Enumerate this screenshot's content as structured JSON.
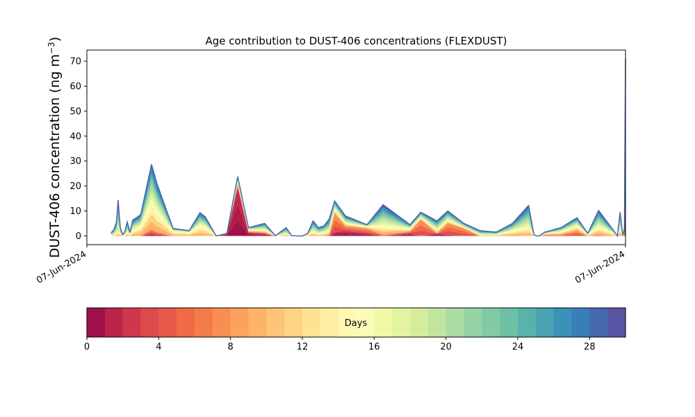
{
  "chart_data": {
    "type": "area",
    "stacked": true,
    "title": "Age contribution to DUST-406 concentrations (FLEXDUST)",
    "ylabel": "DUST-406 concentration (ng m",
    "ylabel_exp": "−3",
    "ylabel_end": ")",
    "xlabel": "",
    "ylim": [
      -3.5,
      74.5
    ],
    "yticks": [
      0,
      10,
      20,
      30,
      40,
      50,
      60,
      70
    ],
    "xticks": [
      0,
      1
    ],
    "xtick_labels": [
      "07-Jun-2024",
      "07-Jun-2024"
    ],
    "x": [
      0.045,
      0.05,
      0.055,
      0.058,
      0.062,
      0.066,
      0.07,
      0.075,
      0.08,
      0.085,
      0.09,
      0.1,
      0.12,
      0.13,
      0.16,
      0.19,
      0.21,
      0.22,
      0.24,
      0.26,
      0.28,
      0.3,
      0.33,
      0.35,
      0.37,
      0.38,
      0.39,
      0.4,
      0.41,
      0.42,
      0.43,
      0.44,
      0.45,
      0.46,
      0.48,
      0.52,
      0.55,
      0.6,
      0.62,
      0.65,
      0.67,
      0.7,
      0.73,
      0.76,
      0.79,
      0.82,
      0.83,
      0.835,
      0.84,
      0.85,
      0.88,
      0.91,
      0.93,
      0.95,
      0.975,
      0.985,
      0.99,
      0.995,
      0.998,
      1.0
    ],
    "total": [
      1.2,
      2.5,
      5.5,
      14.3,
      3.5,
      0.5,
      1.5,
      5.6,
      1.5,
      6.3,
      7.0,
      8.5,
      28.7,
      21,
      3.0,
      2.1,
      9.3,
      7.6,
      0,
      1.0,
      23.8,
      3.3,
      5.0,
      0.1,
      3.3,
      0.1,
      0,
      0,
      1.0,
      6.0,
      3.3,
      4.0,
      6.8,
      14.0,
      8.0,
      4.5,
      12.5,
      4.5,
      9.5,
      6.0,
      10.0,
      5.0,
      2.1,
      1.5,
      5.0,
      12.2,
      0.5,
      0,
      0,
      1.5,
      3.3,
      7.3,
      1.0,
      10.2,
      3.0,
      0,
      9.5,
      0.1,
      3.0,
      71.0
    ],
    "young_0_2": [
      0,
      0,
      0,
      0,
      0,
      0,
      0,
      0,
      0,
      0,
      0,
      0,
      0.8,
      0.5,
      0,
      0,
      0,
      0,
      0,
      0.8,
      19.3,
      1.3,
      0.8,
      0,
      0,
      0,
      0,
      0,
      0,
      0,
      0,
      0,
      0,
      1.5,
      2.0,
      1.0,
      0,
      1.0,
      0,
      1.0,
      0.5,
      0,
      0,
      0,
      0,
      0,
      0,
      0,
      0,
      0,
      0,
      0,
      0,
      0,
      0,
      0,
      0,
      0,
      0,
      56.0
    ],
    "mid_2_8": [
      0,
      0,
      0,
      0,
      0,
      0,
      0,
      0,
      0,
      0,
      0,
      0.2,
      2.0,
      1.2,
      0,
      0,
      0,
      0,
      0,
      0.2,
      1.5,
      0.4,
      0.6,
      0,
      0,
      0,
      0,
      0,
      0,
      0,
      0,
      0,
      0.5,
      7.5,
      2.0,
      2.0,
      0.5,
      0.8,
      6.5,
      0,
      4.5,
      3.0,
      0,
      0,
      0.2,
      0,
      0,
      0,
      0,
      0.5,
      0.5,
      2.0,
      0,
      0.5,
      0,
      0,
      0.2,
      0,
      0,
      0
    ],
    "old_8_16": [
      0.3,
      0.5,
      1.0,
      2.0,
      1.0,
      0.2,
      0.5,
      1.5,
      0.5,
      2.5,
      3.0,
      4.0,
      12.0,
      9.0,
      2.0,
      1.5,
      4.5,
      3.8,
      0,
      0,
      1.0,
      0.8,
      1.2,
      0,
      1.0,
      0,
      0,
      0,
      0.5,
      2.0,
      1.0,
      1.5,
      1.5,
      2.0,
      1.2,
      0.8,
      4.0,
      1.2,
      1.0,
      1.5,
      1.5,
      0.6,
      0.5,
      0.5,
      2.0,
      4.0,
      0.2,
      0,
      0,
      0.4,
      1.3,
      2.3,
      0.6,
      3.5,
      1.5,
      0,
      3.0,
      0,
      1.0,
      8.0
    ],
    "oldest_16_30": [
      0.9,
      2.0,
      4.5,
      12.3,
      2.5,
      0.3,
      1.0,
      4.1,
      1.0,
      3.8,
      4.0,
      4.3,
      13.9,
      10.3,
      1.0,
      0.6,
      4.8,
      3.8,
      0,
      0,
      2.0,
      0.8,
      2.4,
      0.1,
      2.3,
      0.1,
      0,
      0,
      0.5,
      4.0,
      2.3,
      2.5,
      4.8,
      3.0,
      2.8,
      0.7,
      8.0,
      1.5,
      2.0,
      3.5,
      3.5,
      1.4,
      1.6,
      1.0,
      2.8,
      8.2,
      0.3,
      0,
      0,
      0.6,
      1.5,
      3.0,
      0.4,
      6.2,
      1.5,
      0,
      6.3,
      0.1,
      2.0,
      7.0
    ],
    "colorbar": {
      "label": "Days",
      "min": 0,
      "max": 30,
      "ticks": [
        0,
        4,
        8,
        12,
        16,
        20,
        24,
        28
      ],
      "colors": [
        "#a0114a",
        "#bb2449",
        "#cf384c",
        "#dd4b4c",
        "#e85a4a",
        "#f06a45",
        "#f47c4b",
        "#f98e52",
        "#fba25c",
        "#fdb466",
        "#fdc575",
        "#fed484",
        "#fee394",
        "#feeea1",
        "#fef8b1",
        "#fafdb8",
        "#f0f9a8",
        "#e3f4a0",
        "#d4ed9b",
        "#c1e59d",
        "#aadca4",
        "#95d3a4",
        "#80cba5",
        "#6cc1a5",
        "#59b3ab",
        "#4aa3b2",
        "#3c91b9",
        "#387fb9",
        "#4568ae",
        "#5954a3"
      ]
    }
  }
}
